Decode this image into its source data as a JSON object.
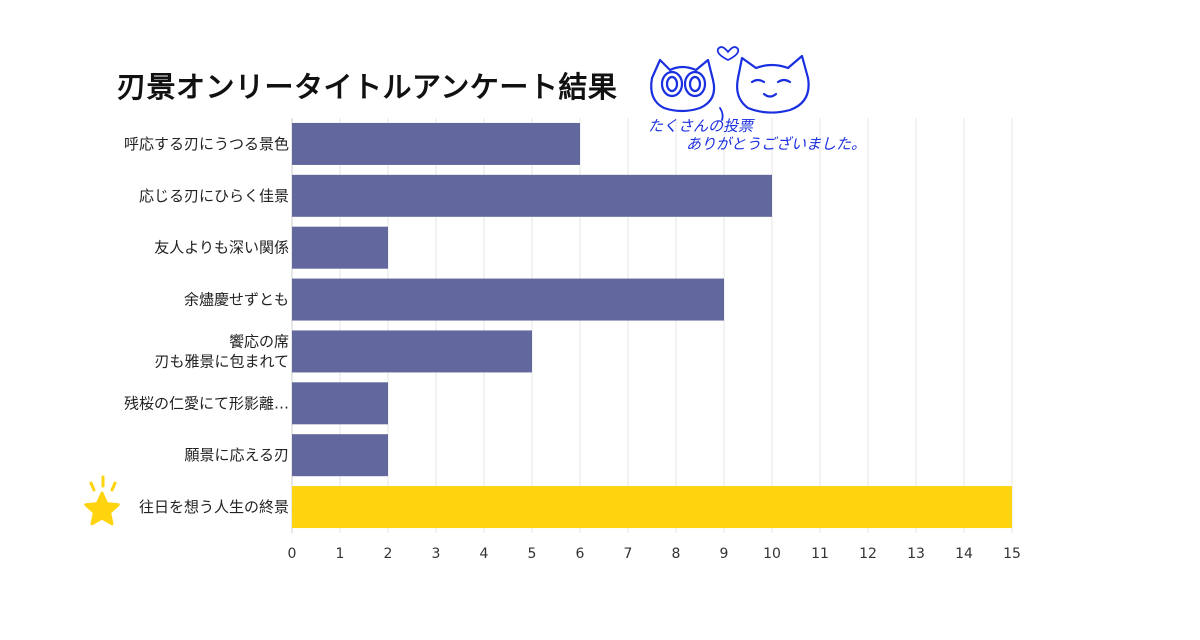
{
  "chart_data": {
    "type": "bar",
    "orientation": "horizontal",
    "title": "刃景オンリータイトルアンケート結果",
    "categories": [
      "呼応する刃にうつる景色",
      "応じる刃にひらく佳景",
      "友人よりも深い関係",
      "余燼慶せずとも",
      "饗応の席\n刃も雅景に包まれて",
      "残桜の仁愛にて形影離…",
      "願景に応える刃",
      "往日を想う人生の終景"
    ],
    "values": [
      6,
      10,
      2,
      9,
      5,
      2,
      2,
      15
    ],
    "highlight_index": 7,
    "xlim": [
      0,
      15
    ],
    "xticks": [
      "0",
      "1",
      "2",
      "3",
      "4",
      "5",
      "6",
      "7",
      "8",
      "9",
      "10",
      "11",
      "12",
      "13",
      "14",
      "15"
    ],
    "grid": true,
    "xlabel": "",
    "ylabel": ""
  },
  "colors": {
    "bar": "#62679d",
    "highlight_bar": "#fdd40e",
    "grid": "#e6e6e6",
    "star": "#fdd40e",
    "doodle": "#1a2fe0"
  },
  "annotation": {
    "line1": "たくさんの投票",
    "line2": "ありがとうございました。",
    "icon": "two-cats-heart-doodle"
  },
  "highlight_icon": "star-icon"
}
